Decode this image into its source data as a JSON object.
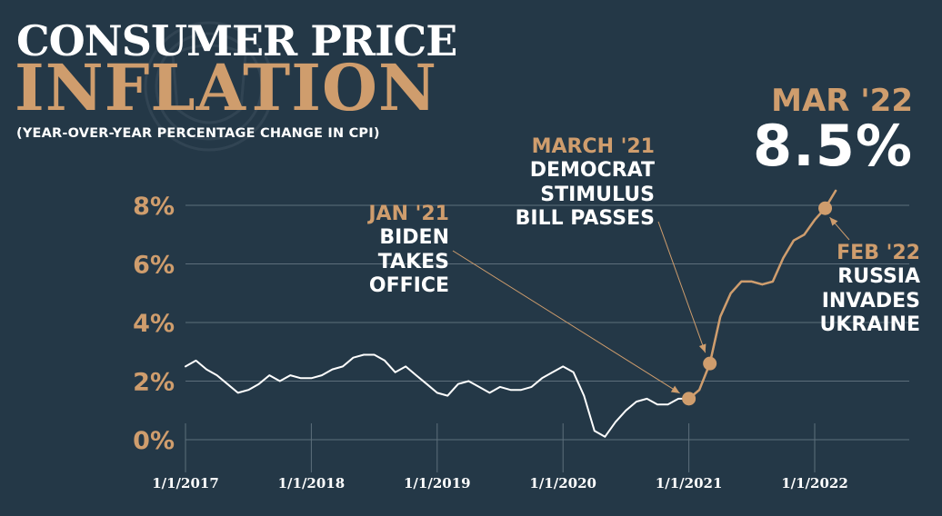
{
  "title": {
    "line1": "CONSUMER PRICE",
    "line2": "INFLATION",
    "subtitle": "(YEAR-OVER-YEAR PERCENTAGE CHANGE IN CPI)"
  },
  "colors": {
    "background": "#243847",
    "accent": "#cf9d6d",
    "line": "#ffffff",
    "grid": "#5d6f7b"
  },
  "annotations": {
    "jan21": {
      "date": "JAN '21",
      "lines": [
        "BIDEN",
        "TAKES",
        "OFFICE"
      ]
    },
    "mar21": {
      "date": "MARCH '21",
      "lines": [
        "DEMOCRAT",
        "STIMULUS",
        "BILL PASSES"
      ]
    },
    "feb22": {
      "date": "FEB '22",
      "lines": [
        "RUSSIA",
        "INVADES",
        "UKRAINE"
      ]
    },
    "mar22": {
      "date": "MAR '22",
      "value": "8.5%"
    }
  },
  "chart_data": {
    "type": "line",
    "title": "CONSUMER PRICE INFLATION",
    "subtitle": "(YEAR-OVER-YEAR PERCENTAGE CHANGE IN CPI)",
    "xlabel": "",
    "ylabel": "",
    "x_ticks": [
      "1/1/2017",
      "1/1/2018",
      "1/1/2019",
      "1/1/2020",
      "1/1/2021",
      "1/1/2022"
    ],
    "y_ticks": [
      "0%",
      "2%",
      "4%",
      "6%",
      "8%"
    ],
    "ylim": [
      0,
      8.5
    ],
    "grid": "horizontal",
    "series": [
      {
        "x": [
          "2017-01",
          "2017-02",
          "2017-03",
          "2017-04",
          "2017-05",
          "2017-06",
          "2017-07",
          "2017-08",
          "2017-09",
          "2017-10",
          "2017-11",
          "2017-12",
          "2018-01",
          "2018-02",
          "2018-03",
          "2018-04",
          "2018-05",
          "2018-06",
          "2018-07",
          "2018-08",
          "2018-09",
          "2018-10",
          "2018-11",
          "2018-12",
          "2019-01",
          "2019-02",
          "2019-03",
          "2019-04",
          "2019-05",
          "2019-06",
          "2019-07",
          "2019-08",
          "2019-09",
          "2019-10",
          "2019-11",
          "2019-12",
          "2020-01",
          "2020-02",
          "2020-03",
          "2020-04",
          "2020-05",
          "2020-06",
          "2020-07",
          "2020-08",
          "2020-09",
          "2020-10",
          "2020-11",
          "2020-12",
          "2021-01",
          "2021-02",
          "2021-03",
          "2021-04",
          "2021-05",
          "2021-06",
          "2021-07",
          "2021-08",
          "2021-09",
          "2021-10",
          "2021-11",
          "2021-12",
          "2022-01",
          "2022-02",
          "2022-03"
        ],
        "values": [
          2.5,
          2.7,
          2.4,
          2.2,
          1.9,
          1.6,
          1.7,
          1.9,
          2.2,
          2.0,
          2.2,
          2.1,
          2.1,
          2.2,
          2.4,
          2.5,
          2.8,
          2.9,
          2.9,
          2.7,
          2.3,
          2.5,
          2.2,
          1.9,
          1.6,
          1.5,
          1.9,
          2.0,
          1.8,
          1.6,
          1.8,
          1.7,
          1.7,
          1.8,
          2.1,
          2.3,
          2.5,
          2.3,
          1.5,
          0.3,
          0.1,
          0.6,
          1.0,
          1.3,
          1.4,
          1.2,
          1.2,
          1.4,
          1.4,
          1.7,
          2.6,
          4.2,
          5.0,
          5.4,
          5.4,
          5.3,
          5.4,
          6.2,
          6.8,
          7.0,
          7.5,
          7.9,
          8.5
        ]
      }
    ],
    "highlighted_points": [
      {
        "x": "2021-01",
        "y": 1.4
      },
      {
        "x": "2021-03",
        "y": 2.6
      },
      {
        "x": "2022-02",
        "y": 7.9
      }
    ]
  }
}
